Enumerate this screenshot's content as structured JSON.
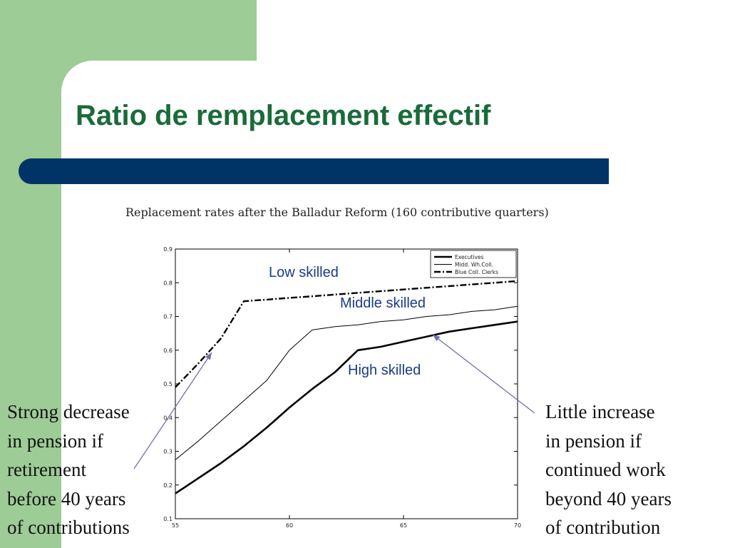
{
  "slide": {
    "title": "Ratio de remplacement effectif",
    "colors": {
      "title": "#1a6b3a",
      "bar": "#003366",
      "panel": "#9dcc96",
      "arrow": "#6f6fb0"
    }
  },
  "annotations": {
    "low": "Low skilled",
    "middle": "Middle skilled",
    "high": "High skilled",
    "left_note": "Strong decrease\nin pension if\nretirement\nbefore 40 years\nof contributions",
    "right_note": "Little increase\nin pension if\ncontinued work\nbeyond 40 years\nof contribution"
  },
  "chart_data": {
    "type": "line",
    "title": "Replacement rates after the Balladur Reform (160 contributive quarters)",
    "xlim": [
      55,
      70
    ],
    "ylim": [
      0.1,
      0.9
    ],
    "xticks": [
      "55",
      "60",
      "65",
      "70"
    ],
    "yticks": [
      "0.1",
      "0.2",
      "0.3",
      "0.4",
      "0.5",
      "0.6",
      "0.7",
      "0.8",
      "0.9"
    ],
    "legend_position": "top-right",
    "series": [
      {
        "name": "Executives",
        "style": "thick-solid",
        "x": [
          55,
          56,
          57,
          58,
          59,
          60,
          61,
          62,
          63,
          64,
          65,
          66,
          67,
          68,
          69,
          70
        ],
        "y": [
          0.175,
          0.22,
          0.265,
          0.315,
          0.37,
          0.43,
          0.485,
          0.535,
          0.6,
          0.61,
          0.625,
          0.64,
          0.655,
          0.665,
          0.675,
          0.685
        ]
      },
      {
        "name": "Midd. Wh.Coll.",
        "style": "thin-solid",
        "x": [
          55,
          56,
          57,
          58,
          59,
          60,
          61,
          62,
          63,
          64,
          65,
          66,
          67,
          68,
          69,
          70
        ],
        "y": [
          0.275,
          0.33,
          0.39,
          0.45,
          0.51,
          0.6,
          0.66,
          0.67,
          0.675,
          0.685,
          0.69,
          0.7,
          0.705,
          0.715,
          0.72,
          0.73
        ]
      },
      {
        "name": "Blue Coll. Clerks",
        "style": "dash-dot",
        "x": [
          55,
          56,
          57,
          58,
          59,
          60,
          61,
          62,
          63,
          64,
          65,
          66,
          67,
          68,
          69,
          70
        ],
        "y": [
          0.49,
          0.56,
          0.635,
          0.745,
          0.75,
          0.755,
          0.76,
          0.765,
          0.77,
          0.775,
          0.78,
          0.785,
          0.79,
          0.795,
          0.8,
          0.805
        ]
      }
    ]
  }
}
